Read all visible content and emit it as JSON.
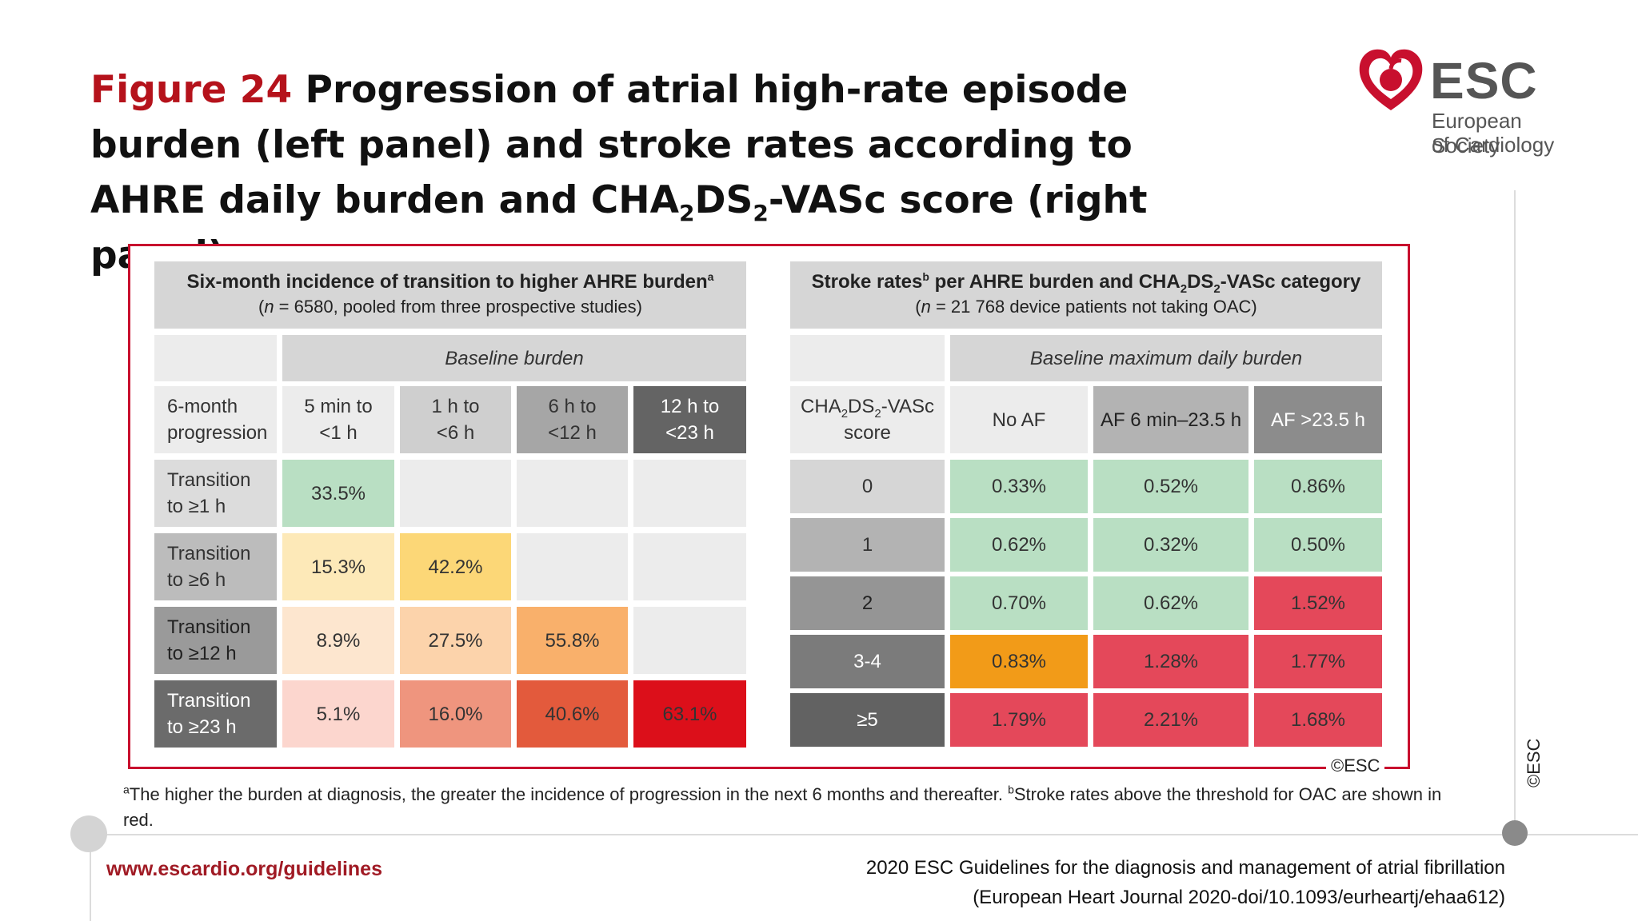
{
  "title": {
    "figure_label": "Figure 24",
    "text_pre": "Progression of atrial high-rate episode burden (left panel) and stroke rates according to AHRE daily burden and CHA",
    "sub1": "2",
    "mid": "DS",
    "sub2": "2",
    "text_post": "-VASc score (right panel)"
  },
  "logo": {
    "name": "ESC",
    "line1": "European Society",
    "line2": "of Cardiology",
    "icon": "heart-logo-icon",
    "color": "#c8102e"
  },
  "copyright": "©ESC",
  "left_panel": {
    "heading": "Six-month incidence of transition to higher AHRE burden",
    "heading_sup": "a",
    "subheading_n": "n",
    "subheading_rest": " = 6580, pooled from three prospective studies)",
    "group_label": "Baseline burden",
    "row_header": "6-month\nprogression",
    "columns": [
      "5 min to\n<1 h",
      "1 h to\n<6 h",
      "6 h to\n<12 h",
      "12 h to\n<23 h"
    ],
    "rows": [
      {
        "label": "Transition\nto ≥1 h",
        "values": [
          "33.5%",
          "",
          "",
          ""
        ]
      },
      {
        "label": "Transition\nto ≥6 h",
        "values": [
          "15.3%",
          "42.2%",
          "",
          ""
        ]
      },
      {
        "label": "Transition\nto ≥12 h",
        "values": [
          "8.9%",
          "27.5%",
          "55.8%",
          ""
        ]
      },
      {
        "label": "Transition\nto ≥23 h",
        "values": [
          "5.1%",
          "16.0%",
          "40.6%",
          "63.1%"
        ]
      }
    ]
  },
  "right_panel": {
    "heading_pre": "Stroke rates",
    "heading_sup": "b",
    "heading_post": " per AHRE burden and CHA",
    "heading_sub1": "2",
    "heading_mid": "DS",
    "heading_sub2": "2",
    "heading_end": "-VASc category",
    "subheading_n": "n",
    "subheading_rest": " = 21 768 device patients not taking OAC)",
    "group_label": "Baseline maximum daily burden",
    "row_header_pre": "CHA",
    "row_header_sub1": "2",
    "row_header_mid": "DS",
    "row_header_sub2": "2",
    "row_header_post": "-VASc",
    "row_header_line2": "score",
    "columns": [
      "No AF",
      "AF 6 min–23.5 h",
      "AF >23.5 h"
    ],
    "rows": [
      {
        "label": "0",
        "values": [
          "0.33%",
          "0.52%",
          "0.86%"
        ]
      },
      {
        "label": "1",
        "values": [
          "0.62%",
          "0.32%",
          "0.50%"
        ]
      },
      {
        "label": "2",
        "values": [
          "0.70%",
          "0.62%",
          "1.52%"
        ]
      },
      {
        "label": "3-4",
        "values": [
          "0.83%",
          "1.28%",
          "1.77%"
        ]
      },
      {
        "label": "≥5",
        "values": [
          "1.79%",
          "2.21%",
          "1.68%"
        ]
      }
    ]
  },
  "colors": {
    "frame": "#c8102e",
    "green": "#b9dfc3",
    "red": "#e4485a",
    "orange": "#f29b18",
    "empty": "#ececec"
  },
  "footnote": {
    "sup_a": "a",
    "text_a": "The higher the burden at diagnosis, the greater the incidence of progression in the next 6 months and thereafter. ",
    "sup_b": "b",
    "text_b": "Stroke rates above the threshold for OAC are shown in red."
  },
  "footer": {
    "url": "www.escardio.org/guidelines",
    "citation_line1": "2020 ESC Guidelines for the diagnosis and management of atrial fibrillation",
    "citation_line2": "(European Heart Journal 2020-doi/10.1093/eurheartj/ehaa612)"
  }
}
